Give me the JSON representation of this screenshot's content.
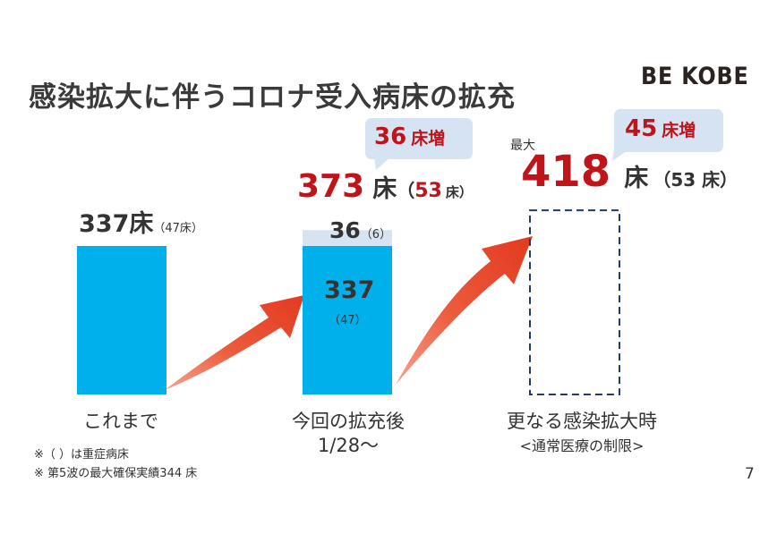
{
  "title": "感染拡大に伴うコロナ受入病床の拡充",
  "logo": "BE KOBE",
  "page_number": "7",
  "colors": {
    "bar": "#00b0eb",
    "bar_add": "#d6e4f2",
    "accent_red": "#c0141b",
    "arrow": "#e8432a",
    "dashed": "#1f3a6b",
    "callout_bg": "#d5e3f3"
  },
  "bars": [
    {
      "category": "これまで",
      "category_sub": "",
      "label_value": "337床",
      "label_sub": "（47床）"
    },
    {
      "category": "今回の拡充後",
      "category_sub": "1/28～",
      "base_value": "337",
      "base_sub": "（47）",
      "add_value": "36",
      "add_sub": "（6）",
      "total_value": "373",
      "total_unit": "床",
      "total_sub_open": "（",
      "total_sub_value": "53",
      "total_sub_unit": "床）",
      "callout_value": "36",
      "callout_unit": "床増"
    },
    {
      "category": "更なる感染拡大時",
      "category_sub": "<通常医療の制限>",
      "max_label": "最大",
      "total_value": "418",
      "total_unit": "床",
      "total_sub": "（53 床）",
      "callout_value": "45",
      "callout_unit": "床増"
    }
  ],
  "notes": [
    "※（ ）は重症病床",
    "※ 第5波の最大確保実績344 床"
  ],
  "chart_data": {
    "type": "bar",
    "categories": [
      "これまで",
      "今回の拡充後",
      "更なる感染拡大時"
    ],
    "series": [
      {
        "values": [
          337,
          337,
          null
        ]
      },
      {
        "values": [
          null,
          36,
          null
        ]
      }
    ],
    "totals": [
      337,
      373,
      418
    ],
    "severe_beds": [
      47,
      53,
      53
    ],
    "increase": [
      null,
      36,
      45
    ],
    "planned": [
      false,
      false,
      true
    ],
    "ylim": [
      0,
      418
    ]
  }
}
